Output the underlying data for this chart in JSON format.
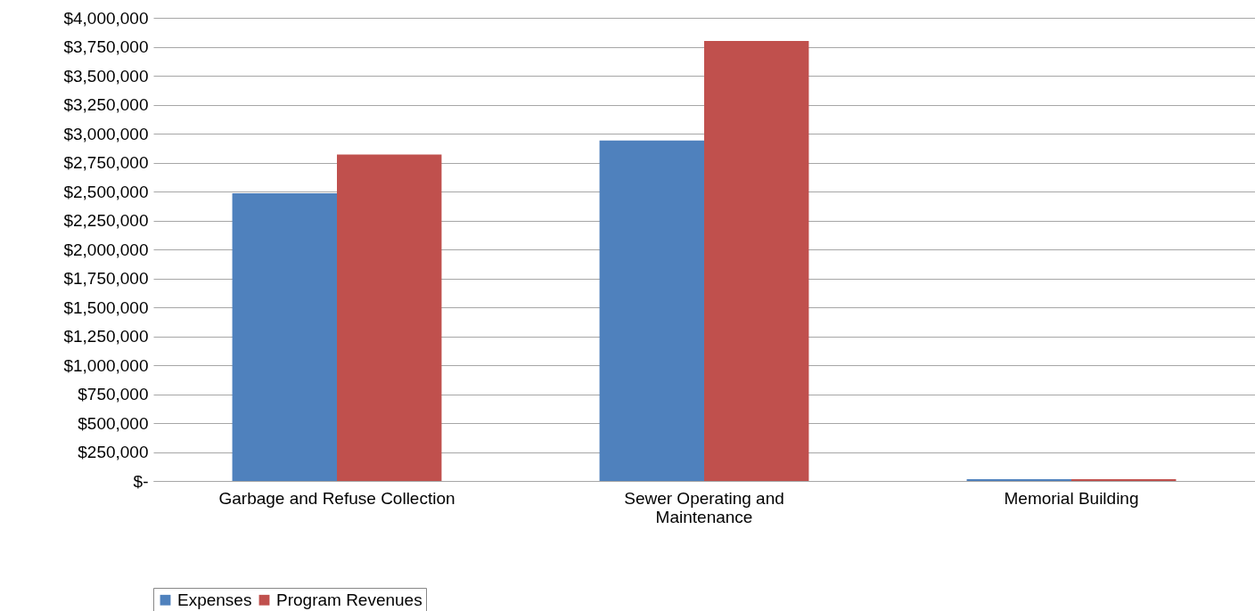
{
  "chart_data": {
    "type": "bar",
    "categories": [
      "Garbage and Refuse Collection",
      "Sewer Operating and Maintenance",
      "Memorial Building"
    ],
    "series": [
      {
        "name": "Expenses",
        "color": "#4f81bd",
        "values": [
          2485000,
          2940000,
          15000
        ]
      },
      {
        "name": "Program Revenues",
        "color": "#c0504d",
        "values": [
          2820000,
          3800000,
          15000
        ]
      }
    ],
    "ylim": [
      0,
      4000000
    ],
    "yticks": [
      {
        "value": 0,
        "label": "$-"
      },
      {
        "value": 250000,
        "label": "$250,000"
      },
      {
        "value": 500000,
        "label": "$500,000"
      },
      {
        "value": 750000,
        "label": "$750,000"
      },
      {
        "value": 1000000,
        "label": "$1,000,000"
      },
      {
        "value": 1250000,
        "label": "$1,250,000"
      },
      {
        "value": 1500000,
        "label": "$1,500,000"
      },
      {
        "value": 1750000,
        "label": "$1,750,000"
      },
      {
        "value": 2000000,
        "label": "$2,000,000"
      },
      {
        "value": 2250000,
        "label": "$2,250,000"
      },
      {
        "value": 2500000,
        "label": "$2,500,000"
      },
      {
        "value": 2750000,
        "label": "$2,750,000"
      },
      {
        "value": 3000000,
        "label": "$3,000,000"
      },
      {
        "value": 3250000,
        "label": "$3,250,000"
      },
      {
        "value": 3500000,
        "label": "$3,500,000"
      },
      {
        "value": 3750000,
        "label": "$3,750,000"
      },
      {
        "value": 4000000,
        "label": "$4,000,000"
      }
    ],
    "grid": "y",
    "legend": "bottom"
  }
}
